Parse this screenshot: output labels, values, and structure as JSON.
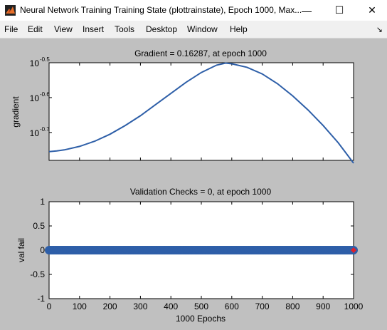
{
  "window": {
    "title": "Neural Network Training Training State (plottrainstate), Epoch 1000, Max...",
    "minimize_glyph": "—",
    "maximize_glyph": "☐",
    "close_glyph": "✕"
  },
  "menu": [
    "File",
    "Edit",
    "View",
    "Insert",
    "Tools",
    "Desktop",
    "Window",
    "Help"
  ],
  "dock_glyph": "↘",
  "chart_data": [
    {
      "type": "line",
      "title": "Gradient = 0.16287, at epoch 1000",
      "ylabel": "gradient",
      "xlabel": "",
      "yscale": "log",
      "xlim": [
        0,
        1000
      ],
      "ylim_log10": [
        -0.78,
        -0.5
      ],
      "ytick_labels": [
        {
          "value": -0.5,
          "base": "10",
          "exp": "-0.5"
        },
        {
          "value": -0.6,
          "base": "10",
          "exp": "-0.6"
        },
        {
          "value": -0.7,
          "base": "10",
          "exp": "-0.7"
        }
      ],
      "grid": false,
      "color": "#2e5fa8",
      "series": [
        {
          "x": [
            0,
            25,
            50,
            100,
            150,
            200,
            250,
            300,
            350,
            400,
            450,
            500,
            550,
            580,
            600,
            650,
            700,
            750,
            800,
            850,
            900,
            950,
            1000
          ],
          "y_log10": [
            -0.755,
            -0.753,
            -0.75,
            -0.74,
            -0.725,
            -0.705,
            -0.68,
            -0.652,
            -0.62,
            -0.588,
            -0.556,
            -0.528,
            -0.507,
            -0.501,
            -0.503,
            -0.513,
            -0.532,
            -0.56,
            -0.595,
            -0.635,
            -0.68,
            -0.73,
            -0.788
          ]
        }
      ]
    },
    {
      "type": "scatter",
      "title": "Validation Checks = 0, at epoch 1000",
      "ylabel": "val fail",
      "xlabel": "1000 Epochs",
      "xlim": [
        0,
        1000
      ],
      "ylim": [
        -1,
        1
      ],
      "yticks": [
        "1",
        "0.5",
        "0",
        "-0.5",
        "-1"
      ],
      "xticks": [
        "0",
        "100",
        "200",
        "300",
        "400",
        "500",
        "600",
        "700",
        "800",
        "900",
        "1000"
      ],
      "grid": false,
      "color": "#2e5fa8",
      "final_marker_color": "#e0202a",
      "series": [
        {
          "x_range": [
            0,
            1000
          ],
          "value": 0,
          "count": 1001
        }
      ]
    }
  ]
}
